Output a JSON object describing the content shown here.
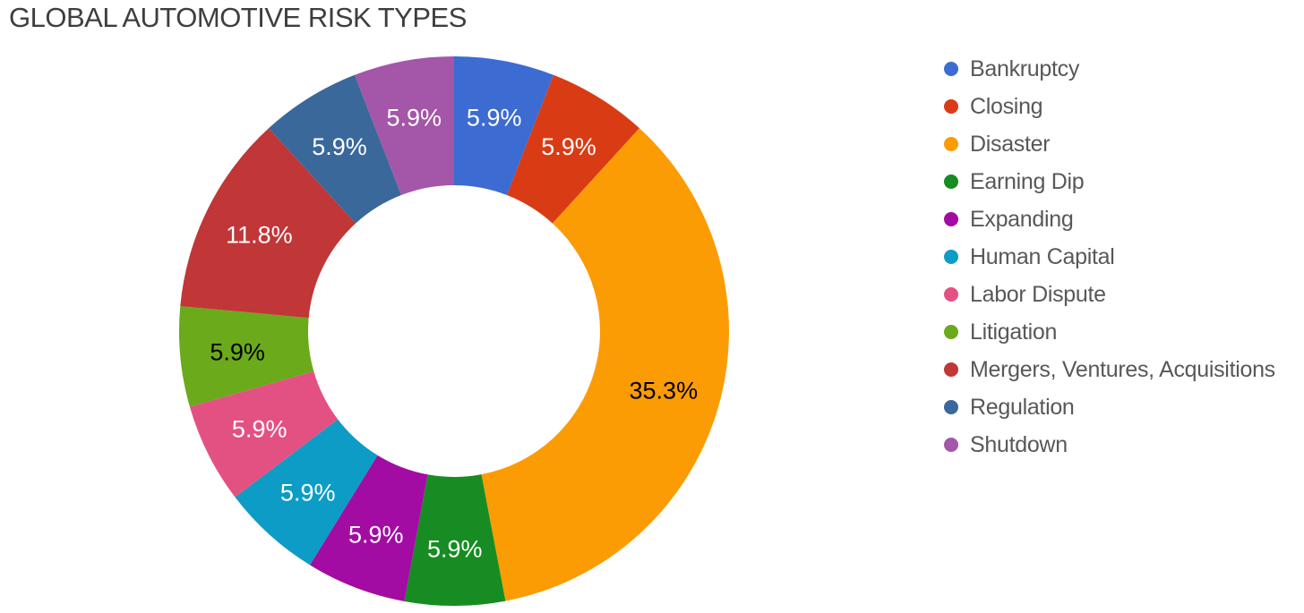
{
  "page": {
    "background": "#ffffff"
  },
  "chart_data": {
    "type": "pie",
    "subtype": "donut",
    "title": "GLOBAL AUTOMOTIVE RISK TYPES",
    "pie_hole_ratio": 0.53,
    "start_angle_deg": 0,
    "direction": "clockwise",
    "legend_position": "right",
    "label_format": "percent",
    "slices": [
      {
        "label": "Bankruptcy",
        "value_pct": 5.9,
        "display_label": "5.9%",
        "color": "#3c6bd2",
        "label_text_color": "#ffffff"
      },
      {
        "label": "Closing",
        "value_pct": 5.9,
        "display_label": "5.9%",
        "color": "#d93c14",
        "label_text_color": "#ffffff"
      },
      {
        "label": "Disaster",
        "value_pct": 35.3,
        "display_label": "35.3%",
        "color": "#fb9c04",
        "label_text_color": "#000000"
      },
      {
        "label": "Earning Dip",
        "value_pct": 5.9,
        "display_label": "5.9%",
        "color": "#178c22",
        "label_text_color": "#ffffff"
      },
      {
        "label": "Expanding",
        "value_pct": 5.9,
        "display_label": "5.9%",
        "color": "#a20ca3",
        "label_text_color": "#ffffff"
      },
      {
        "label": "Human Capital",
        "value_pct": 5.9,
        "display_label": "5.9%",
        "color": "#0d9cc5",
        "label_text_color": "#ffffff"
      },
      {
        "label": "Labor Dispute",
        "value_pct": 5.9,
        "display_label": "5.9%",
        "color": "#e35183",
        "label_text_color": "#ffffff"
      },
      {
        "label": "Litigation",
        "value_pct": 5.9,
        "display_label": "5.9%",
        "color": "#6aaa1b",
        "label_text_color": "#000000"
      },
      {
        "label": "Mergers, Ventures, Acquisitions",
        "value_pct": 11.8,
        "display_label": "11.8%",
        "color": "#c13637",
        "label_text_color": "#ffffff"
      },
      {
        "label": "Regulation",
        "value_pct": 5.9,
        "display_label": "5.9%",
        "color": "#3a689b",
        "label_text_color": "#ffffff"
      },
      {
        "label": "Shutdown",
        "value_pct": 5.9,
        "display_label": "5.9%",
        "color": "#a456a8",
        "label_text_color": "#ffffff"
      }
    ]
  }
}
